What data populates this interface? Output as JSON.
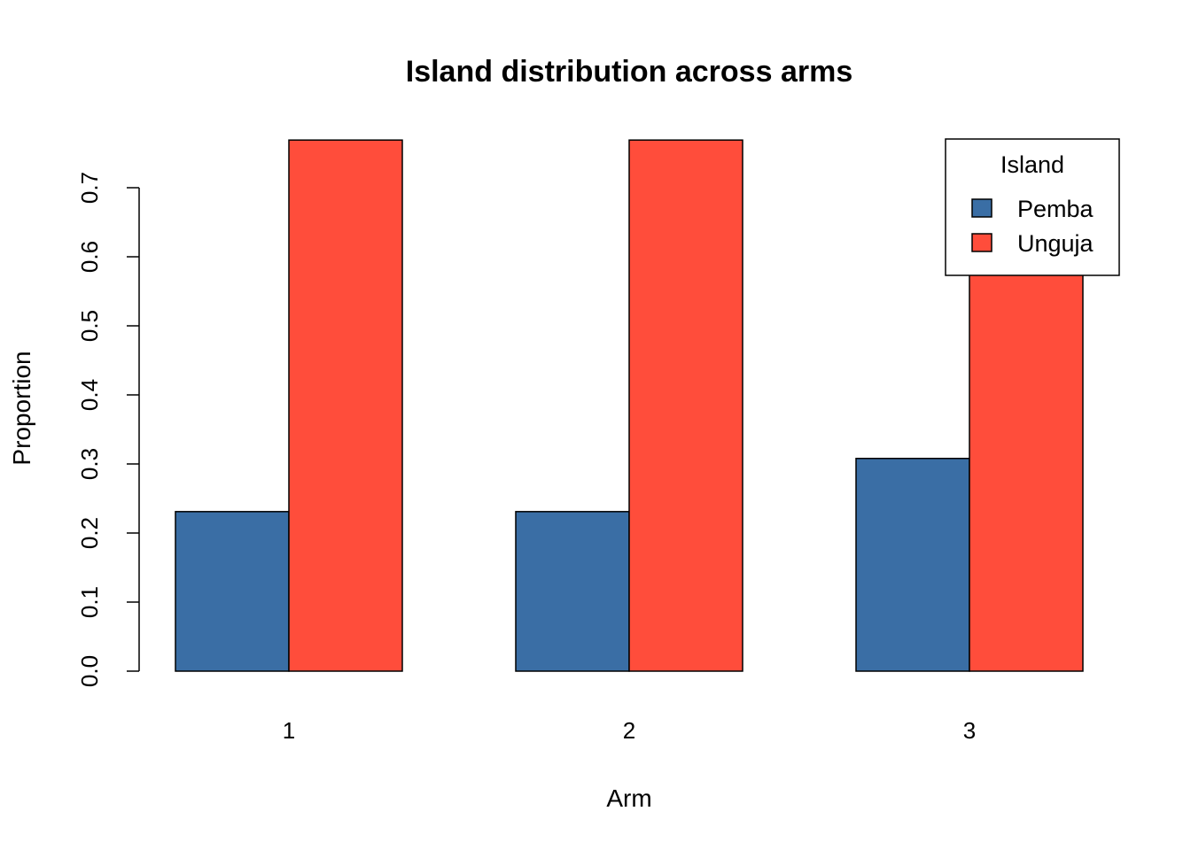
{
  "chart_data": {
    "type": "bar",
    "title": "Island distribution across arms",
    "xlabel": "Arm",
    "ylabel": "Proportion",
    "categories": [
      "1",
      "2",
      "3"
    ],
    "series": [
      {
        "name": "Pemba",
        "color": "#3A6EA5",
        "values": [
          0.231,
          0.231,
          0.308
        ]
      },
      {
        "name": "Unguja",
        "color": "#FF4D3B",
        "values": [
          0.769,
          0.769,
          0.692
        ]
      }
    ],
    "yticks": [
      "0.0",
      "0.1",
      "0.2",
      "0.3",
      "0.4",
      "0.5",
      "0.6",
      "0.7"
    ],
    "ylim": [
      0,
      0.769
    ],
    "grid": false,
    "legend": {
      "title": "Island",
      "position": "top-right"
    }
  }
}
